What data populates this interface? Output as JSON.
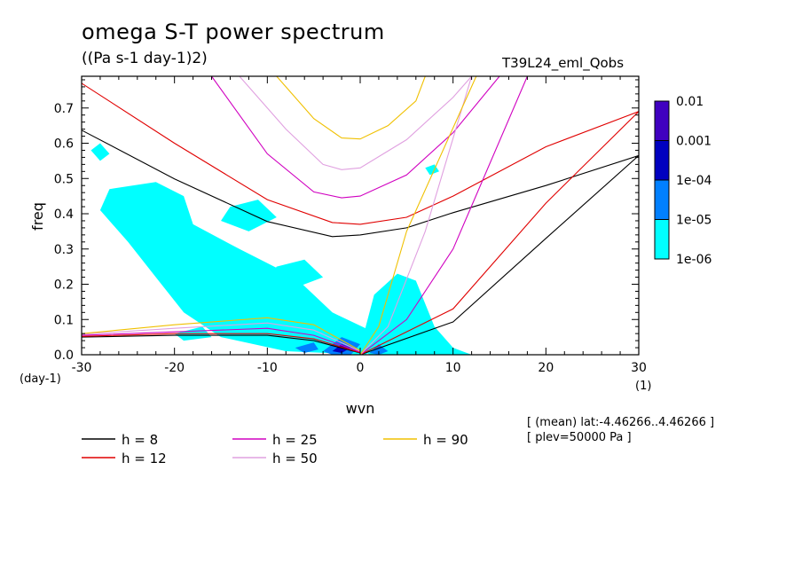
{
  "title": "omega S-T power spectrum",
  "units": "((Pa s-1 day-1)2)",
  "run_name": "T39L24_eml_Qobs",
  "info_lines": [
    "[ (mean) lat:-4.46266..4.46266 ]",
    "[ plev=50000 Pa ]"
  ],
  "chart_data": {
    "type": "heatmap",
    "xlabel": "wvn",
    "ylabel": "freq",
    "x_unit": "(1)",
    "y_unit": "(day-1)",
    "xlim": [
      -30,
      30
    ],
    "ylim": [
      0,
      0.79
    ],
    "x_ticks": [
      -30,
      -20,
      -10,
      0,
      10,
      20,
      30
    ],
    "x_tick_labels": [
      "-30",
      "-20",
      "-10",
      "0",
      "10",
      "20",
      "30"
    ],
    "y_ticks": [
      0,
      0.1,
      0.2,
      0.3,
      0.4,
      0.5,
      0.6,
      0.7
    ],
    "y_tick_labels": [
      "0.0",
      "0.1",
      "0.2",
      "0.3",
      "0.4",
      "0.5",
      "0.6",
      "0.7"
    ],
    "colorbar": {
      "levels": [
        "1e-06",
        "1e-05",
        "1e-04",
        "0.001",
        "0.01"
      ],
      "colors": [
        "#00ffff",
        "#0080ff",
        "#0000c0",
        "#4000c0"
      ]
    },
    "shaded_regions": [
      {
        "level_index": 0,
        "points": [
          [
            -27,
            0.47
          ],
          [
            -22,
            0.49
          ],
          [
            -19,
            0.45
          ],
          [
            -18,
            0.37
          ],
          [
            -13,
            0.3
          ],
          [
            -7,
            0.22
          ],
          [
            -3,
            0.12
          ],
          [
            1,
            0.07
          ],
          [
            3,
            0.03
          ],
          [
            0.5,
            0.0
          ],
          [
            -8,
            0.01
          ],
          [
            -15,
            0.05
          ],
          [
            -19,
            0.12
          ],
          [
            -22,
            0.22
          ],
          [
            -25,
            0.32
          ],
          [
            -28,
            0.41
          ]
        ]
      },
      {
        "level_index": 0,
        "points": [
          [
            -14,
            0.42
          ],
          [
            -11,
            0.44
          ],
          [
            -9,
            0.39
          ],
          [
            -12,
            0.35
          ],
          [
            -15,
            0.38
          ]
        ]
      },
      {
        "level_index": 0,
        "points": [
          [
            -9,
            0.25
          ],
          [
            -6,
            0.27
          ],
          [
            -4,
            0.22
          ],
          [
            -7,
            0.19
          ],
          [
            -10,
            0.21
          ]
        ]
      },
      {
        "level_index": 0,
        "points": [
          [
            0,
            0.02
          ],
          [
            1.5,
            0.17
          ],
          [
            4,
            0.23
          ],
          [
            6,
            0.21
          ],
          [
            8,
            0.08
          ],
          [
            10,
            0.02
          ],
          [
            12,
            0.0
          ],
          [
            1,
            0.0
          ]
        ]
      },
      {
        "level_index": 0,
        "points": [
          [
            -29,
            0.58
          ],
          [
            -28,
            0.6
          ],
          [
            -27,
            0.57
          ],
          [
            -28,
            0.55
          ]
        ]
      },
      {
        "level_index": 0,
        "points": [
          [
            7,
            0.53
          ],
          [
            8,
            0.54
          ],
          [
            8.5,
            0.52
          ],
          [
            7.5,
            0.51
          ]
        ]
      },
      {
        "level_index": 0,
        "points": [
          [
            -20,
            0.06
          ],
          [
            -17,
            0.08
          ],
          [
            -16,
            0.05
          ],
          [
            -19,
            0.04
          ]
        ]
      },
      {
        "level_index": 1,
        "points": [
          [
            -4,
            0.01
          ],
          [
            -2,
            0.05
          ],
          [
            0,
            0.03
          ],
          [
            -1,
            0.0
          ],
          [
            -3,
            0.0
          ]
        ]
      },
      {
        "level_index": 1,
        "points": [
          [
            -7,
            0.02
          ],
          [
            -5,
            0.035
          ],
          [
            -4.5,
            0.015
          ],
          [
            -6,
            0.005
          ]
        ]
      },
      {
        "level_index": 1,
        "points": [
          [
            1,
            0.005
          ],
          [
            2,
            0.03
          ],
          [
            3,
            0.01
          ],
          [
            2,
            0.0
          ]
        ]
      },
      {
        "level_index": 2,
        "points": [
          [
            -3,
            0.01
          ],
          [
            -2,
            0.03
          ],
          [
            -1,
            0.02
          ],
          [
            -2,
            0.005
          ]
        ]
      }
    ],
    "legend": [
      {
        "label": "h =  8",
        "color": "#000000"
      },
      {
        "label": "h = 12",
        "color": "#e00000"
      },
      {
        "label": "h = 25",
        "color": "#d000c0"
      },
      {
        "label": "h = 50",
        "color": "#e0a0e0"
      },
      {
        "label": "h = 90",
        "color": "#f0c000"
      }
    ],
    "series": [
      {
        "h": 8,
        "color": "#000000",
        "ig": [
          [
            -30,
            0.637
          ],
          [
            -20,
            0.499
          ],
          [
            -10,
            0.378
          ],
          [
            -3,
            0.335
          ],
          [
            0,
            0.34
          ],
          [
            5,
            0.36
          ],
          [
            10,
            0.403
          ],
          [
            20,
            0.48
          ],
          [
            30,
            0.565
          ]
        ],
        "kelvin": [
          [
            0,
            0
          ],
          [
            10,
            0.093
          ],
          [
            20,
            0.33
          ],
          [
            30,
            0.565
          ]
        ],
        "mrg_low": [
          [
            -30,
            0.05
          ],
          [
            -20,
            0.055
          ],
          [
            -10,
            0.055
          ],
          [
            -5,
            0.04
          ],
          [
            0,
            0.005
          ]
        ]
      },
      {
        "h": 12,
        "color": "#e00000",
        "ig": [
          [
            -30,
            0.77
          ],
          [
            -20,
            0.6
          ],
          [
            -10,
            0.44
          ],
          [
            -3,
            0.375
          ],
          [
            0,
            0.37
          ],
          [
            5,
            0.39
          ],
          [
            10,
            0.45
          ],
          [
            20,
            0.59
          ],
          [
            30,
            0.69
          ]
        ],
        "kelvin": [
          [
            0,
            0
          ],
          [
            10,
            0.13
          ],
          [
            20,
            0.43
          ],
          [
            30,
            0.69
          ]
        ],
        "mrg_low": [
          [
            -30,
            0.052
          ],
          [
            -20,
            0.06
          ],
          [
            -10,
            0.06
          ],
          [
            -5,
            0.045
          ],
          [
            0,
            0.006
          ]
        ]
      },
      {
        "h": 25,
        "color": "#d000c0",
        "ig": [
          [
            -16,
            0.79
          ],
          [
            -10,
            0.57
          ],
          [
            -5,
            0.462
          ],
          [
            -2,
            0.445
          ],
          [
            0,
            0.45
          ],
          [
            5,
            0.51
          ],
          [
            10,
            0.63
          ],
          [
            15,
            0.79
          ]
        ],
        "kelvin": [
          [
            0,
            0
          ],
          [
            5,
            0.1
          ],
          [
            10,
            0.3
          ],
          [
            18,
            0.79
          ]
        ],
        "mrg_low": [
          [
            -30,
            0.055
          ],
          [
            -20,
            0.065
          ],
          [
            -10,
            0.075
          ],
          [
            -5,
            0.055
          ],
          [
            0,
            0.008
          ]
        ]
      },
      {
        "h": 50,
        "color": "#e0a0e0",
        "ig": [
          [
            -13,
            0.79
          ],
          [
            -8,
            0.64
          ],
          [
            -4,
            0.54
          ],
          [
            -2,
            0.525
          ],
          [
            0,
            0.53
          ],
          [
            5,
            0.61
          ],
          [
            10,
            0.73
          ],
          [
            12,
            0.79
          ]
        ],
        "kelvin": [
          [
            0,
            0
          ],
          [
            3,
            0.08
          ],
          [
            7,
            0.35
          ],
          [
            12,
            0.79
          ]
        ],
        "mrg_low": [
          [
            -30,
            0.058
          ],
          [
            -20,
            0.075
          ],
          [
            -10,
            0.09
          ],
          [
            -5,
            0.07
          ],
          [
            0,
            0.01
          ]
        ]
      },
      {
        "h": 90,
        "color": "#f0c000",
        "ig": [
          [
            -9,
            0.79
          ],
          [
            -5,
            0.67
          ],
          [
            -2,
            0.615
          ],
          [
            0,
            0.612
          ],
          [
            3,
            0.65
          ],
          [
            6,
            0.72
          ],
          [
            7,
            0.79
          ]
        ],
        "kelvin": [
          [
            0,
            0
          ],
          [
            2,
            0.08
          ],
          [
            5,
            0.35
          ],
          [
            12.5,
            0.79
          ]
        ],
        "mrg_low": [
          [
            -30,
            0.06
          ],
          [
            -20,
            0.085
          ],
          [
            -10,
            0.105
          ],
          [
            -5,
            0.085
          ],
          [
            0,
            0.012
          ]
        ]
      }
    ]
  }
}
